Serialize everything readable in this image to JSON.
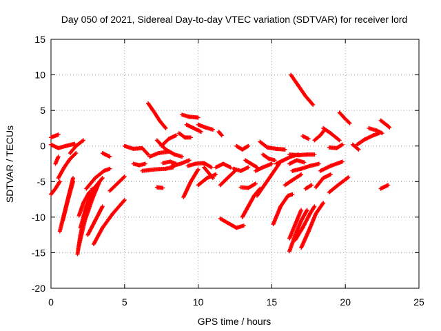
{
  "chart_data": {
    "type": "scatter",
    "title": "Day 050 of 2021, Sidereal Day-to-day VTEC variation (SDTVAR) for receiver lord",
    "xlabel": "GPS time / hours",
    "ylabel": "SDTVAR / TECUs",
    "xlim": [
      0,
      25
    ],
    "ylim": [
      -20,
      15
    ],
    "xticks": [
      0,
      5,
      10,
      15,
      20,
      25
    ],
    "yticks": [
      -20,
      -15,
      -10,
      -5,
      0,
      5,
      10,
      15
    ],
    "grid": true,
    "marker": "+",
    "color": "#ff0000",
    "series": [
      {
        "arcs": [
          [
            [
              0.0,
              1.2
            ],
            [
              0.5,
              1.6
            ]
          ],
          [
            [
              0.0,
              0.2
            ],
            [
              0.5,
              -0.3
            ],
            [
              1.0,
              0.0
            ],
            [
              1.6,
              0.3
            ]
          ],
          [
            [
              0.0,
              -6.8
            ],
            [
              0.3,
              -6.0
            ],
            [
              0.6,
              -5.0
            ]
          ],
          [
            [
              0.3,
              -2.5
            ],
            [
              0.5,
              -1.5
            ]
          ],
          [
            [
              0.5,
              -4.5
            ],
            [
              0.9,
              -3.0
            ],
            [
              1.3,
              -1.8
            ],
            [
              1.7,
              -1.0
            ]
          ],
          [
            [
              1.3,
              -1.0
            ],
            [
              1.7,
              0.0
            ],
            [
              2.2,
              0.8
            ]
          ],
          [
            [
              0.6,
              -12.0
            ],
            [
              0.9,
              -9.5
            ],
            [
              1.2,
              -7.0
            ],
            [
              1.5,
              -4.5
            ]
          ],
          [
            [
              0.8,
              -10.5
            ],
            [
              1.1,
              -8.0
            ],
            [
              1.5,
              -5.0
            ]
          ],
          [
            [
              1.8,
              -15.2
            ],
            [
              2.0,
              -12.5
            ],
            [
              2.3,
              -9.5
            ],
            [
              2.8,
              -6.0
            ]
          ],
          [
            [
              1.9,
              -14.0
            ],
            [
              2.3,
              -10.5
            ],
            [
              2.8,
              -7.5
            ],
            [
              3.3,
              -5.0
            ]
          ],
          [
            [
              2.0,
              -11.5
            ],
            [
              2.4,
              -8.5
            ],
            [
              2.9,
              -6.0
            ],
            [
              3.5,
              -4.5
            ]
          ],
          [
            [
              1.9,
              -9.8
            ],
            [
              2.2,
              -8.0
            ],
            [
              2.6,
              -6.5
            ]
          ],
          [
            [
              2.5,
              -12.5
            ],
            [
              3.0,
              -10.5
            ],
            [
              3.5,
              -8.5
            ]
          ],
          [
            [
              2.9,
              -13.8
            ],
            [
              3.5,
              -11.5
            ],
            [
              4.2,
              -9.5
            ],
            [
              5.0,
              -7.6
            ]
          ],
          [
            [
              2.4,
              -6.0
            ],
            [
              3.0,
              -4.5
            ],
            [
              3.6,
              -3.5
            ],
            [
              4.0,
              -3.2
            ]
          ],
          [
            [
              3.5,
              -1.0
            ],
            [
              4.0,
              -1.5
            ]
          ],
          [
            [
              4.0,
              -6.3
            ],
            [
              4.5,
              -5.3
            ],
            [
              5.0,
              -4.3
            ]
          ],
          [
            [
              5.0,
              0.0
            ],
            [
              5.6,
              -0.4
            ],
            [
              6.2,
              -0.3
            ],
            [
              6.6,
              -1.2
            ]
          ],
          [
            [
              5.6,
              -2.5
            ],
            [
              6.0,
              -2.7
            ],
            [
              6.4,
              -2.5
            ]
          ],
          [
            [
              6.6,
              6.0
            ],
            [
              7.0,
              4.8
            ],
            [
              7.4,
              3.5
            ],
            [
              7.8,
              2.5
            ]
          ],
          [
            [
              7.5,
              0.0
            ],
            [
              8.0,
              1.0
            ],
            [
              8.5,
              1.5
            ]
          ],
          [
            [
              7.2,
              0.8
            ],
            [
              7.8,
              -0.5
            ],
            [
              8.4,
              -1.2
            ],
            [
              8.9,
              -1.5
            ]
          ],
          [
            [
              6.7,
              -1.5
            ],
            [
              7.3,
              -1.0
            ],
            [
              8.0,
              -0.8
            ]
          ],
          [
            [
              6.2,
              -3.5
            ],
            [
              7.0,
              -3.3
            ],
            [
              7.8,
              -3.2
            ],
            [
              8.3,
              -3.0
            ]
          ],
          [
            [
              7.6,
              -2.4
            ],
            [
              8.1,
              -2.2
            ],
            [
              8.5,
              -2.5
            ]
          ],
          [
            [
              7.2,
              -5.8
            ],
            [
              7.6,
              -5.9
            ]
          ],
          [
            [
              8.2,
              -2.8
            ],
            [
              8.8,
              -2.5
            ],
            [
              9.4,
              -2.0
            ]
          ],
          [
            [
              8.7,
              1.8
            ],
            [
              9.1,
              1.2
            ],
            [
              9.5,
              1.2
            ]
          ],
          [
            [
              8.9,
              4.4
            ],
            [
              9.4,
              4.1
            ],
            [
              10.0,
              4.0
            ]
          ],
          [
            [
              9.2,
              3.0
            ],
            [
              9.7,
              2.5
            ],
            [
              10.2,
              2.0
            ]
          ],
          [
            [
              10.0,
              3.0
            ],
            [
              10.5,
              2.6
            ],
            [
              11.0,
              2.3
            ]
          ],
          [
            [
              11.4,
              2.0
            ],
            [
              11.6,
              1.5
            ]
          ],
          [
            [
              9.3,
              -2.8
            ],
            [
              9.8,
              -2.5
            ],
            [
              10.4,
              -2.4
            ],
            [
              10.9,
              -3.0
            ]
          ],
          [
            [
              10.4,
              -3.0
            ],
            [
              11.0,
              -4.5
            ]
          ],
          [
            [
              9.0,
              -7.2
            ],
            [
              9.5,
              -5.0
            ],
            [
              10.0,
              -3.3
            ]
          ],
          [
            [
              10.0,
              -5.5
            ],
            [
              10.6,
              -4.5
            ],
            [
              11.2,
              -4.0
            ]
          ],
          [
            [
              11.5,
              -5.5
            ],
            [
              12.0,
              -4.5
            ],
            [
              12.5,
              -3.5
            ]
          ],
          [
            [
              11.2,
              -3.0
            ],
            [
              11.7,
              -2.5
            ],
            [
              12.2,
              -3.0
            ]
          ],
          [
            [
              11.5,
              -10.2
            ],
            [
              12.0,
              -10.8
            ],
            [
              12.6,
              -11.5
            ],
            [
              13.1,
              -11.2
            ]
          ],
          [
            [
              13.0,
              -10.0
            ],
            [
              13.4,
              -8.5
            ],
            [
              13.8,
              -7.0
            ],
            [
              14.2,
              -6.0
            ]
          ],
          [
            [
              12.9,
              -5.8
            ],
            [
              13.4,
              -5.9
            ],
            [
              13.9,
              -5.3
            ]
          ],
          [
            [
              12.4,
              -3.2
            ],
            [
              12.9,
              -3.5
            ],
            [
              13.4,
              -3.0
            ]
          ],
          [
            [
              12.6,
              0.0
            ],
            [
              13.0,
              -0.5
            ],
            [
              13.4,
              0.0
            ]
          ],
          [
            [
              13.2,
              -2.0
            ],
            [
              13.6,
              -2.5
            ],
            [
              14.0,
              -3.0
            ]
          ],
          [
            [
              14.2,
              0.6
            ],
            [
              14.7,
              -0.2
            ],
            [
              15.3,
              -0.4
            ],
            [
              15.9,
              -0.5
            ]
          ],
          [
            [
              13.9,
              -3.5
            ],
            [
              14.4,
              -3.0
            ],
            [
              15.0,
              -2.5
            ]
          ],
          [
            [
              14.4,
              -1.2
            ],
            [
              14.8,
              -1.8
            ],
            [
              15.2,
              -2.0
            ]
          ],
          [
            [
              14.0,
              -7.0
            ],
            [
              14.5,
              -5.5
            ],
            [
              15.0,
              -4.0
            ],
            [
              15.5,
              -2.5
            ]
          ],
          [
            [
              15.1,
              -11.0
            ],
            [
              15.6,
              -8.5
            ],
            [
              16.1,
              -7.0
            ],
            [
              16.4,
              -6.8
            ]
          ],
          [
            [
              15.3,
              -2.5
            ],
            [
              15.8,
              -2.0
            ],
            [
              16.3,
              -1.5
            ],
            [
              16.8,
              -1.2
            ]
          ],
          [
            [
              16.2,
              -1.2
            ],
            [
              16.8,
              -1.3
            ],
            [
              17.4,
              -1.2
            ],
            [
              17.9,
              -1.2
            ]
          ],
          [
            [
              16.2,
              -14.8
            ],
            [
              16.6,
              -12.5
            ],
            [
              17.0,
              -10.5
            ],
            [
              17.4,
              -9.0
            ]
          ],
          [
            [
              16.2,
              -13.0
            ],
            [
              16.6,
              -11.0
            ],
            [
              17.0,
              -9.0
            ]
          ],
          [
            [
              16.6,
              -13.2
            ],
            [
              17.1,
              -11.5
            ],
            [
              17.6,
              -9.5
            ],
            [
              17.9,
              -8.5
            ]
          ],
          [
            [
              17.0,
              -14.3
            ],
            [
              17.5,
              -12.0
            ],
            [
              18.0,
              -9.5
            ],
            [
              18.5,
              -8.0
            ]
          ],
          [
            [
              16.2,
              -2.5
            ],
            [
              16.7,
              -2.0
            ],
            [
              17.2,
              -2.3
            ]
          ],
          [
            [
              16.4,
              -3.5
            ],
            [
              17.0,
              -3.2
            ],
            [
              17.6,
              -2.8
            ],
            [
              18.2,
              -2.5
            ]
          ],
          [
            [
              15.9,
              -5.5
            ],
            [
              16.4,
              -4.8
            ],
            [
              17.0,
              -4.0
            ]
          ],
          [
            [
              17.3,
              -6.0
            ],
            [
              17.7,
              -5.5
            ]
          ],
          [
            [
              18.0,
              -5.8
            ],
            [
              18.5,
              -4.5
            ],
            [
              19.0,
              -4.0
            ]
          ],
          [
            [
              18.9,
              -6.5
            ],
            [
              19.5,
              -5.5
            ],
            [
              20.2,
              -4.4
            ]
          ],
          [
            [
              18.3,
              -3.5
            ],
            [
              19.0,
              -2.8
            ],
            [
              19.8,
              -2.2
            ]
          ],
          [
            [
              16.3,
              10.0
            ],
            [
              16.8,
              8.5
            ],
            [
              17.3,
              7.0
            ],
            [
              17.8,
              5.8
            ]
          ],
          [
            [
              17.1,
              1.4
            ],
            [
              17.5,
              1.0
            ]
          ],
          [
            [
              17.9,
              0.8
            ],
            [
              18.3,
              1.5
            ],
            [
              18.6,
              2.3
            ]
          ],
          [
            [
              18.5,
              2.5
            ],
            [
              19.0,
              1.8
            ],
            [
              19.6,
              0.8
            ]
          ],
          [
            [
              18.9,
              -0.2
            ],
            [
              19.4,
              -0.3
            ],
            [
              19.8,
              0.2
            ]
          ],
          [
            [
              19.6,
              4.7
            ],
            [
              20.0,
              3.8
            ],
            [
              20.3,
              3.2
            ]
          ],
          [
            [
              20.5,
              0.2
            ],
            [
              20.9,
              -0.5
            ]
          ],
          [
            [
              20.8,
              0.2
            ],
            [
              21.3,
              0.9
            ],
            [
              21.9,
              1.5
            ],
            [
              22.3,
              1.8
            ]
          ],
          [
            [
              21.6,
              2.5
            ],
            [
              22.1,
              2.2
            ],
            [
              22.5,
              1.8
            ]
          ],
          [
            [
              22.4,
              3.6
            ],
            [
              22.9,
              2.8
            ],
            [
              23.0,
              2.6
            ]
          ],
          [
            [
              22.4,
              -6.0
            ],
            [
              22.9,
              -5.5
            ]
          ]
        ]
      }
    ]
  }
}
